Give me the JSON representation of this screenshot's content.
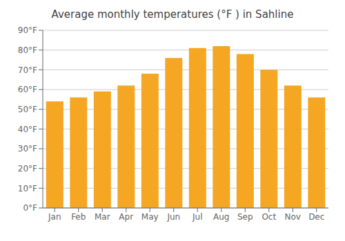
{
  "chart_data": {
    "type": "bar",
    "title": "Average monthly temperatures (°F ) in Sahline",
    "categories": [
      "Jan",
      "Feb",
      "Mar",
      "Apr",
      "May",
      "Jun",
      "Jul",
      "Aug",
      "Sep",
      "Oct",
      "Nov",
      "Dec"
    ],
    "values": [
      54,
      56,
      59,
      62,
      68,
      76,
      81,
      82,
      78,
      70,
      62,
      56
    ],
    "color": "#F5A623",
    "ylim": [
      0,
      90
    ],
    "yticks": [
      {
        "value": 0,
        "label": "0°F"
      },
      {
        "value": 10,
        "label": "10°F"
      },
      {
        "value": 20,
        "label": "20°F"
      },
      {
        "value": 30,
        "label": "30°F"
      },
      {
        "value": 40,
        "label": "40°F"
      },
      {
        "value": 50,
        "label": "50°F"
      },
      {
        "value": 60,
        "label": "60°F"
      },
      {
        "value": 70,
        "label": "70°F"
      },
      {
        "value": 80,
        "label": "80°F"
      },
      {
        "value": 90,
        "label": "90°F"
      }
    ],
    "grid": true
  }
}
